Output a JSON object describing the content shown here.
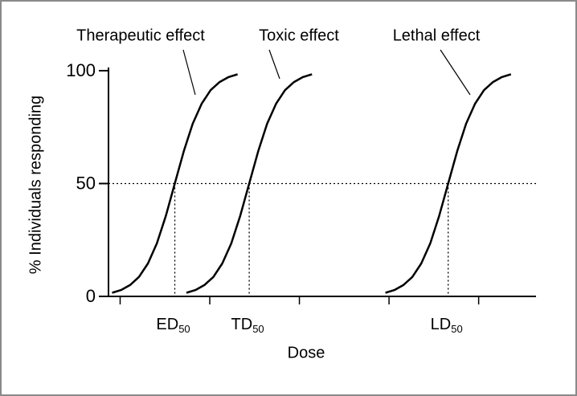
{
  "chart_data": {
    "type": "line",
    "x_label": "Dose",
    "y_label": "% Individuals responding",
    "xlim": [
      -0.13,
      4.64
    ],
    "xticks": [
      0,
      1,
      2,
      3,
      4
    ],
    "ylim": [
      0,
      100
    ],
    "yticks": [
      0,
      50,
      100
    ],
    "hline": 50,
    "color": "#000000",
    "series": [
      {
        "name": "Therapeutic effect",
        "x": [
          -0.09,
          0.01,
          0.11,
          0.21,
          0.31,
          0.41,
          0.51,
          0.61,
          0.71,
          0.81,
          0.91,
          1.01,
          1.11,
          1.21,
          1.31
        ],
        "values": [
          1.6,
          2.8,
          5.0,
          8.6,
          14.6,
          23.5,
          35.7,
          50,
          64.3,
          76.5,
          85.4,
          91.4,
          95.0,
          97.2,
          98.4
        ]
      },
      {
        "name": "Toxic effect",
        "x": [
          0.74,
          0.84,
          0.94,
          1.04,
          1.14,
          1.24,
          1.34,
          1.44,
          1.54,
          1.64,
          1.74,
          1.84,
          1.94,
          2.04,
          2.14
        ],
        "values": [
          1.6,
          2.8,
          5.0,
          8.6,
          14.6,
          23.5,
          35.7,
          50,
          64.3,
          76.5,
          85.4,
          91.4,
          95.0,
          97.2,
          98.4
        ]
      },
      {
        "name": "Lethal effect",
        "x": [
          2.96,
          3.06,
          3.16,
          3.26,
          3.36,
          3.46,
          3.56,
          3.66,
          3.76,
          3.86,
          3.96,
          4.06,
          4.16,
          4.26,
          4.36
        ],
        "values": [
          1.6,
          2.8,
          5.0,
          8.6,
          14.6,
          23.5,
          35.7,
          50,
          64.3,
          76.5,
          85.4,
          91.4,
          95.0,
          97.2,
          98.4
        ]
      }
    ],
    "markers": [
      {
        "label": "ED",
        "subscript": "50",
        "x": 0.61,
        "y": 50
      },
      {
        "label": "TD",
        "subscript": "50",
        "x": 1.44,
        "y": 50
      },
      {
        "label": "LD",
        "subscript": "50",
        "x": 3.66,
        "y": 50
      }
    ]
  }
}
